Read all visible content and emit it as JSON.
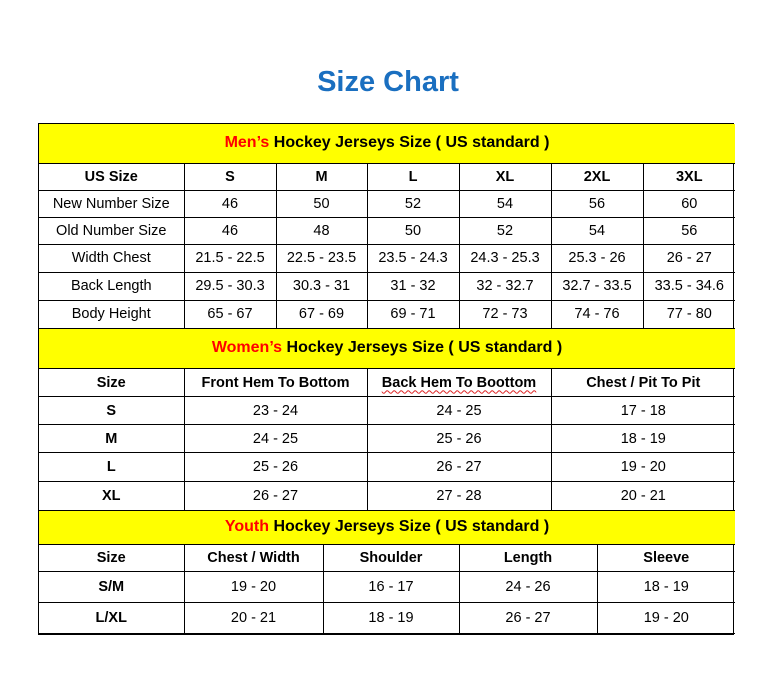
{
  "title": "Size Chart",
  "colors": {
    "title": "#1a6fc0",
    "header_bg": "#ffff00",
    "highlight": "#ff0000"
  },
  "men": {
    "header": {
      "highlight": "Men’s",
      "rest": " Hockey Jerseys Size ( US standard )"
    },
    "columns": [
      "US Size",
      "S",
      "M",
      "L",
      "XL",
      "2XL",
      "3XL"
    ],
    "rows": [
      [
        "New Number Size",
        "46",
        "50",
        "52",
        "54",
        "56",
        "60"
      ],
      [
        "Old Number Size",
        "46",
        "48",
        "50",
        "52",
        "54",
        "56"
      ],
      [
        "Width Chest",
        "21.5 - 22.5",
        "22.5 - 23.5",
        "23.5 - 24.3",
        "24.3 - 25.3",
        "25.3 - 26",
        "26 - 27"
      ],
      [
        "Back Length",
        "29.5 - 30.3",
        "30.3 - 31",
        "31 - 32",
        "32 - 32.7",
        "32.7 - 33.5",
        "33.5 - 34.6"
      ],
      [
        "Body Height",
        "65 - 67",
        "67 - 69",
        "69 - 71",
        "72 - 73",
        "74 - 76",
        "77 - 80"
      ]
    ]
  },
  "women": {
    "header": {
      "highlight": "Women’s",
      "rest": " Hockey Jerseys Size ( US standard )"
    },
    "columns": [
      "Size",
      "Front Hem To Bottom",
      "Back Hem To Boottom",
      "Chest / Pit To Pit"
    ],
    "rows": [
      [
        "S",
        "23 - 24",
        "24 - 25",
        "17 - 18"
      ],
      [
        "M",
        "24 - 25",
        "25 - 26",
        "18 - 19"
      ],
      [
        "L",
        "25 - 26",
        "26 - 27",
        "19 - 20"
      ],
      [
        "XL",
        "26 - 27",
        "27 - 28",
        "20 - 21"
      ]
    ]
  },
  "youth": {
    "header": {
      "highlight": "Youth",
      "rest": " Hockey Jerseys Size ( US standard )"
    },
    "columns": [
      "Size",
      "Chest / Width",
      "Shoulder",
      "Length",
      "Sleeve"
    ],
    "rows": [
      [
        "S/M",
        "19 - 20",
        "16 - 17",
        "24 - 26",
        "18 - 19"
      ],
      [
        "L/XL",
        "20 - 21",
        "18 - 19",
        "26 - 27",
        "19 - 20"
      ]
    ]
  }
}
